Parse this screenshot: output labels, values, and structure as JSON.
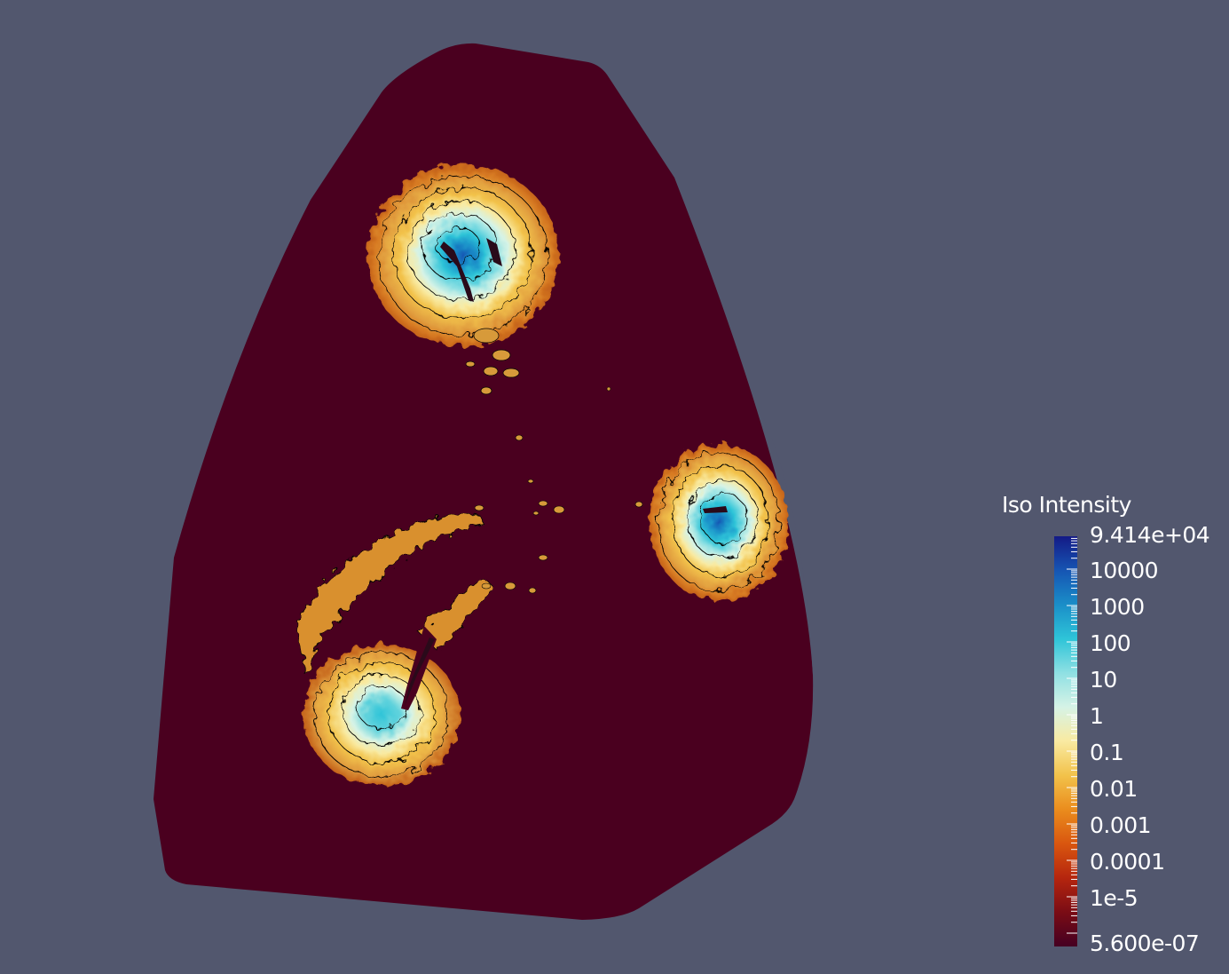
{
  "scalar_bar": {
    "title": "Iso Intensity",
    "max_label": "9.414e+04",
    "min_label": "5.600e-07",
    "tick_labels": [
      "10000",
      "1000",
      "100",
      "10",
      "1",
      "0.1",
      "0.01",
      "0.001",
      "0.0001",
      "1e-5"
    ],
    "colormap": [
      "#450022",
      "#7a0c15",
      "#b5250e",
      "#d9560f",
      "#ea8c1d",
      "#f2c24a",
      "#f9eaa1",
      "#d6f3e6",
      "#8fe0e3",
      "#2ec4d8",
      "#1a8ec8",
      "#1655b3",
      "#141a86"
    ]
  },
  "scene": {
    "background": "#52576e",
    "domain_color": "#4a001f",
    "contour_line_color": "#000000"
  }
}
